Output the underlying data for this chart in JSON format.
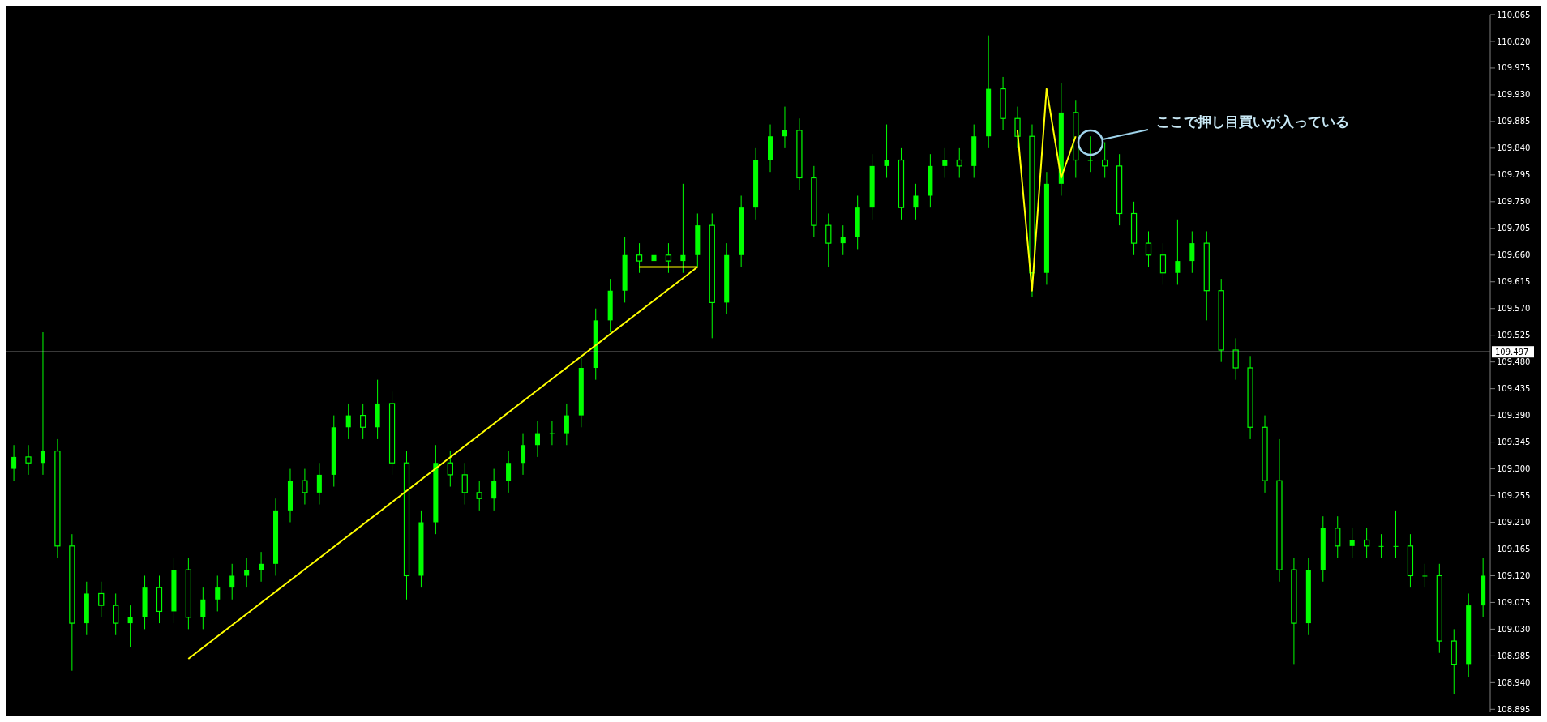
{
  "chart_data": {
    "type": "candlestick",
    "color": "#00ff00",
    "categories": [
      null,
      null,
      null,
      null,
      null,
      null,
      null,
      null,
      null,
      null,
      null,
      null,
      null,
      null,
      null,
      null,
      null,
      null,
      null,
      null,
      null,
      null,
      null,
      null,
      null,
      null,
      null,
      null,
      null,
      null,
      null,
      null,
      null,
      null,
      null,
      null,
      null,
      null,
      null,
      null,
      null,
      null,
      null,
      null,
      null,
      null,
      null,
      null,
      null,
      null,
      null,
      null,
      null,
      null,
      null,
      null,
      null,
      null,
      null,
      null,
      null,
      null,
      null,
      null,
      null,
      null,
      null,
      null,
      null,
      null,
      null,
      null,
      null,
      null,
      null,
      null,
      null,
      null,
      null,
      null,
      null,
      null,
      null,
      null,
      null,
      null,
      null,
      null,
      null,
      null,
      null,
      null,
      null,
      null,
      null,
      null,
      null,
      null,
      null,
      null,
      null,
      null
    ],
    "ohlc": [
      [
        109.3,
        109.34,
        109.28,
        109.32
      ],
      [
        109.32,
        109.34,
        109.29,
        109.31
      ],
      [
        109.31,
        109.53,
        109.29,
        109.33
      ],
      [
        109.33,
        109.35,
        109.15,
        109.17
      ],
      [
        109.17,
        109.19,
        108.96,
        109.04
      ],
      [
        109.04,
        109.11,
        109.02,
        109.09
      ],
      [
        109.09,
        109.11,
        109.05,
        109.07
      ],
      [
        109.07,
        109.09,
        109.02,
        109.04
      ],
      [
        109.04,
        109.07,
        109.0,
        109.05
      ],
      [
        109.05,
        109.12,
        109.03,
        109.1
      ],
      [
        109.1,
        109.12,
        109.04,
        109.06
      ],
      [
        109.06,
        109.15,
        109.04,
        109.13
      ],
      [
        109.13,
        109.15,
        109.03,
        109.05
      ],
      [
        109.05,
        109.1,
        109.03,
        109.08
      ],
      [
        109.08,
        109.12,
        109.06,
        109.1
      ],
      [
        109.1,
        109.14,
        109.08,
        109.12
      ],
      [
        109.12,
        109.15,
        109.1,
        109.13
      ],
      [
        109.13,
        109.16,
        109.11,
        109.14
      ],
      [
        109.14,
        109.25,
        109.12,
        109.23
      ],
      [
        109.23,
        109.3,
        109.21,
        109.28
      ],
      [
        109.28,
        109.3,
        109.24,
        109.26
      ],
      [
        109.26,
        109.31,
        109.24,
        109.29
      ],
      [
        109.29,
        109.39,
        109.27,
        109.37
      ],
      [
        109.37,
        109.41,
        109.35,
        109.39
      ],
      [
        109.39,
        109.41,
        109.35,
        109.37
      ],
      [
        109.37,
        109.45,
        109.35,
        109.41
      ],
      [
        109.41,
        109.43,
        109.29,
        109.31
      ],
      [
        109.31,
        109.33,
        109.08,
        109.12
      ],
      [
        109.12,
        109.23,
        109.1,
        109.21
      ],
      [
        109.21,
        109.34,
        109.19,
        109.31
      ],
      [
        109.31,
        109.33,
        109.27,
        109.29
      ],
      [
        109.29,
        109.31,
        109.24,
        109.26
      ],
      [
        109.26,
        109.28,
        109.23,
        109.25
      ],
      [
        109.25,
        109.3,
        109.23,
        109.28
      ],
      [
        109.28,
        109.33,
        109.26,
        109.31
      ],
      [
        109.31,
        109.36,
        109.29,
        109.34
      ],
      [
        109.34,
        109.38,
        109.32,
        109.36
      ],
      [
        109.36,
        109.38,
        109.34,
        109.36
      ],
      [
        109.36,
        109.41,
        109.34,
        109.39
      ],
      [
        109.39,
        109.49,
        109.37,
        109.47
      ],
      [
        109.47,
        109.57,
        109.45,
        109.55
      ],
      [
        109.55,
        109.62,
        109.53,
        109.6
      ],
      [
        109.6,
        109.69,
        109.58,
        109.66
      ],
      [
        109.66,
        109.68,
        109.63,
        109.65
      ],
      [
        109.65,
        109.68,
        109.63,
        109.66
      ],
      [
        109.66,
        109.68,
        109.63,
        109.65
      ],
      [
        109.65,
        109.78,
        109.63,
        109.66
      ],
      [
        109.66,
        109.73,
        109.64,
        109.71
      ],
      [
        109.71,
        109.73,
        109.52,
        109.58
      ],
      [
        109.58,
        109.68,
        109.56,
        109.66
      ],
      [
        109.66,
        109.76,
        109.64,
        109.74
      ],
      [
        109.74,
        109.84,
        109.72,
        109.82
      ],
      [
        109.82,
        109.88,
        109.8,
        109.86
      ],
      [
        109.86,
        109.91,
        109.84,
        109.87
      ],
      [
        109.87,
        109.89,
        109.77,
        109.79
      ],
      [
        109.79,
        109.81,
        109.69,
        109.71
      ],
      [
        109.71,
        109.73,
        109.64,
        109.68
      ],
      [
        109.68,
        109.71,
        109.66,
        109.69
      ],
      [
        109.69,
        109.76,
        109.67,
        109.74
      ],
      [
        109.74,
        109.83,
        109.72,
        109.81
      ],
      [
        109.81,
        109.88,
        109.79,
        109.82
      ],
      [
        109.82,
        109.84,
        109.72,
        109.74
      ],
      [
        109.74,
        109.78,
        109.72,
        109.76
      ],
      [
        109.76,
        109.83,
        109.74,
        109.81
      ],
      [
        109.81,
        109.84,
        109.79,
        109.82
      ],
      [
        109.82,
        109.84,
        109.79,
        109.81
      ],
      [
        109.81,
        109.88,
        109.79,
        109.86
      ],
      [
        109.86,
        110.03,
        109.84,
        109.94
      ],
      [
        109.94,
        109.96,
        109.87,
        109.89
      ],
      [
        109.89,
        109.91,
        109.84,
        109.86
      ],
      [
        109.86,
        109.88,
        109.59,
        109.63
      ],
      [
        109.63,
        109.8,
        109.61,
        109.78
      ],
      [
        109.78,
        109.95,
        109.76,
        109.9
      ],
      [
        109.9,
        109.92,
        109.79,
        109.82
      ],
      [
        109.82,
        109.86,
        109.8,
        109.82
      ],
      [
        109.82,
        109.85,
        109.79,
        109.81
      ],
      [
        109.81,
        109.83,
        109.71,
        109.73
      ],
      [
        109.73,
        109.75,
        109.66,
        109.68
      ],
      [
        109.68,
        109.7,
        109.64,
        109.66
      ],
      [
        109.66,
        109.68,
        109.61,
        109.63
      ],
      [
        109.63,
        109.72,
        109.61,
        109.65
      ],
      [
        109.65,
        109.7,
        109.63,
        109.68
      ],
      [
        109.68,
        109.7,
        109.55,
        109.6
      ],
      [
        109.6,
        109.62,
        109.48,
        109.5
      ],
      [
        109.5,
        109.52,
        109.45,
        109.47
      ],
      [
        109.47,
        109.49,
        109.35,
        109.37
      ],
      [
        109.37,
        109.39,
        109.26,
        109.28
      ],
      [
        109.28,
        109.35,
        109.11,
        109.13
      ],
      [
        109.13,
        109.15,
        108.97,
        109.04
      ],
      [
        109.04,
        109.15,
        109.02,
        109.13
      ],
      [
        109.13,
        109.22,
        109.11,
        109.2
      ],
      [
        109.2,
        109.22,
        109.15,
        109.17
      ],
      [
        109.17,
        109.2,
        109.15,
        109.18
      ],
      [
        109.18,
        109.2,
        109.15,
        109.17
      ],
      [
        109.17,
        109.19,
        109.15,
        109.17
      ],
      [
        109.17,
        109.23,
        109.15,
        109.17
      ],
      [
        109.17,
        109.19,
        109.1,
        109.12
      ],
      [
        109.12,
        109.14,
        109.1,
        109.12
      ],
      [
        109.12,
        109.14,
        108.99,
        109.01
      ],
      [
        109.01,
        109.03,
        108.92,
        108.97
      ],
      [
        108.97,
        109.09,
        108.95,
        109.07
      ],
      [
        109.07,
        109.15,
        109.05,
        109.12
      ]
    ],
    "series": [
      {
        "type": "line",
        "color": "#ffff00",
        "values": [
          null,
          null,
          null,
          null,
          null,
          null,
          null,
          null,
          null,
          null,
          null,
          null,
          108.98,
          null,
          null,
          null,
          null,
          null,
          null,
          null,
          null,
          null,
          null,
          null,
          null,
          null,
          null,
          null,
          null,
          null,
          null,
          null,
          null,
          null,
          null,
          null,
          null,
          null,
          null,
          null,
          null,
          null,
          null,
          null,
          null,
          null,
          null,
          109.64,
          null,
          null,
          null,
          null,
          null,
          null,
          null,
          null,
          null,
          null,
          null,
          null,
          null,
          null,
          null,
          null,
          null,
          null,
          null,
          null,
          null,
          null,
          null,
          null,
          null,
          null,
          null,
          null,
          null,
          null,
          null,
          null,
          null,
          null,
          null,
          null,
          null,
          null,
          null,
          null,
          null,
          null,
          null,
          null,
          null,
          null,
          null,
          null,
          null,
          null,
          null,
          null,
          null,
          null
        ]
      },
      {
        "type": "line",
        "color": "#ffff00",
        "values": [
          null,
          null,
          null,
          null,
          null,
          null,
          null,
          null,
          null,
          null,
          null,
          null,
          null,
          null,
          null,
          null,
          null,
          null,
          null,
          null,
          null,
          null,
          null,
          null,
          null,
          null,
          null,
          null,
          null,
          null,
          null,
          null,
          null,
          null,
          null,
          null,
          null,
          null,
          null,
          null,
          null,
          null,
          null,
          109.64,
          null,
          null,
          null,
          109.64,
          null,
          null,
          null,
          null,
          null,
          null,
          null,
          null,
          null,
          null,
          null,
          null,
          null,
          null,
          null,
          null,
          null,
          null,
          null,
          null,
          null,
          null,
          null,
          null,
          null,
          null,
          null,
          null,
          null,
          null,
          null,
          null,
          null,
          null,
          null,
          null,
          null,
          null,
          null,
          null,
          null,
          null,
          null,
          null,
          null,
          null,
          null,
          null,
          null,
          null,
          null,
          null,
          null,
          null
        ]
      },
      {
        "type": "line",
        "color": "#ffff00",
        "values": [
          null,
          null,
          null,
          null,
          null,
          null,
          null,
          null,
          null,
          null,
          null,
          null,
          null,
          null,
          null,
          null,
          null,
          null,
          null,
          null,
          null,
          null,
          null,
          null,
          null,
          null,
          null,
          null,
          null,
          null,
          null,
          null,
          null,
          null,
          null,
          null,
          null,
          null,
          null,
          null,
          null,
          null,
          null,
          null,
          null,
          null,
          null,
          null,
          null,
          null,
          null,
          null,
          null,
          null,
          null,
          null,
          null,
          null,
          null,
          null,
          null,
          null,
          null,
          null,
          null,
          null,
          null,
          null,
          null,
          109.87,
          109.6,
          109.94,
          109.79,
          109.86,
          null,
          null,
          null,
          null,
          null,
          null,
          null,
          null,
          null,
          null,
          null,
          null,
          null,
          null,
          null,
          null,
          null,
          null,
          null,
          null,
          null,
          null,
          null,
          null,
          null,
          null,
          null,
          null
        ]
      }
    ],
    "ylim": [
      108.89,
      110.065
    ],
    "yticks": [
      108.895,
      {
        "value": 108.94,
        "label": "108.940"
      },
      108.985,
      {
        "value": 109.03,
        "label": "109.030"
      },
      109.075,
      {
        "value": 109.12,
        "label": "109.120"
      },
      109.165,
      {
        "value": 109.21,
        "label": "109.210"
      },
      109.255,
      {
        "value": 109.3,
        "label": "109.300"
      },
      109.345,
      {
        "value": 109.39,
        "label": "109.390"
      },
      109.435,
      {
        "value": 109.48,
        "label": "109.480"
      },
      109.525,
      {
        "value": 109.57,
        "label": "109.570"
      },
      109.615,
      {
        "value": 109.66,
        "label": "109.660"
      },
      109.705,
      {
        "value": 109.75,
        "label": "109.750"
      },
      109.795,
      {
        "value": 109.84,
        "label": "109.840"
      },
      109.885,
      {
        "value": 109.93,
        "label": "109.930"
      },
      109.975,
      {
        "value": 110.02,
        "label": "110.020"
      },
      110.065
    ],
    "ref_lines": [
      {
        "axis": "y",
        "value": 109.497,
        "label": "109.497",
        "color": "#c0c0c0"
      }
    ],
    "annotations": [
      "ここで押し目買いが入っている"
    ],
    "grid": false,
    "legend": false,
    "marker": "none",
    "tick_labels": "y"
  }
}
